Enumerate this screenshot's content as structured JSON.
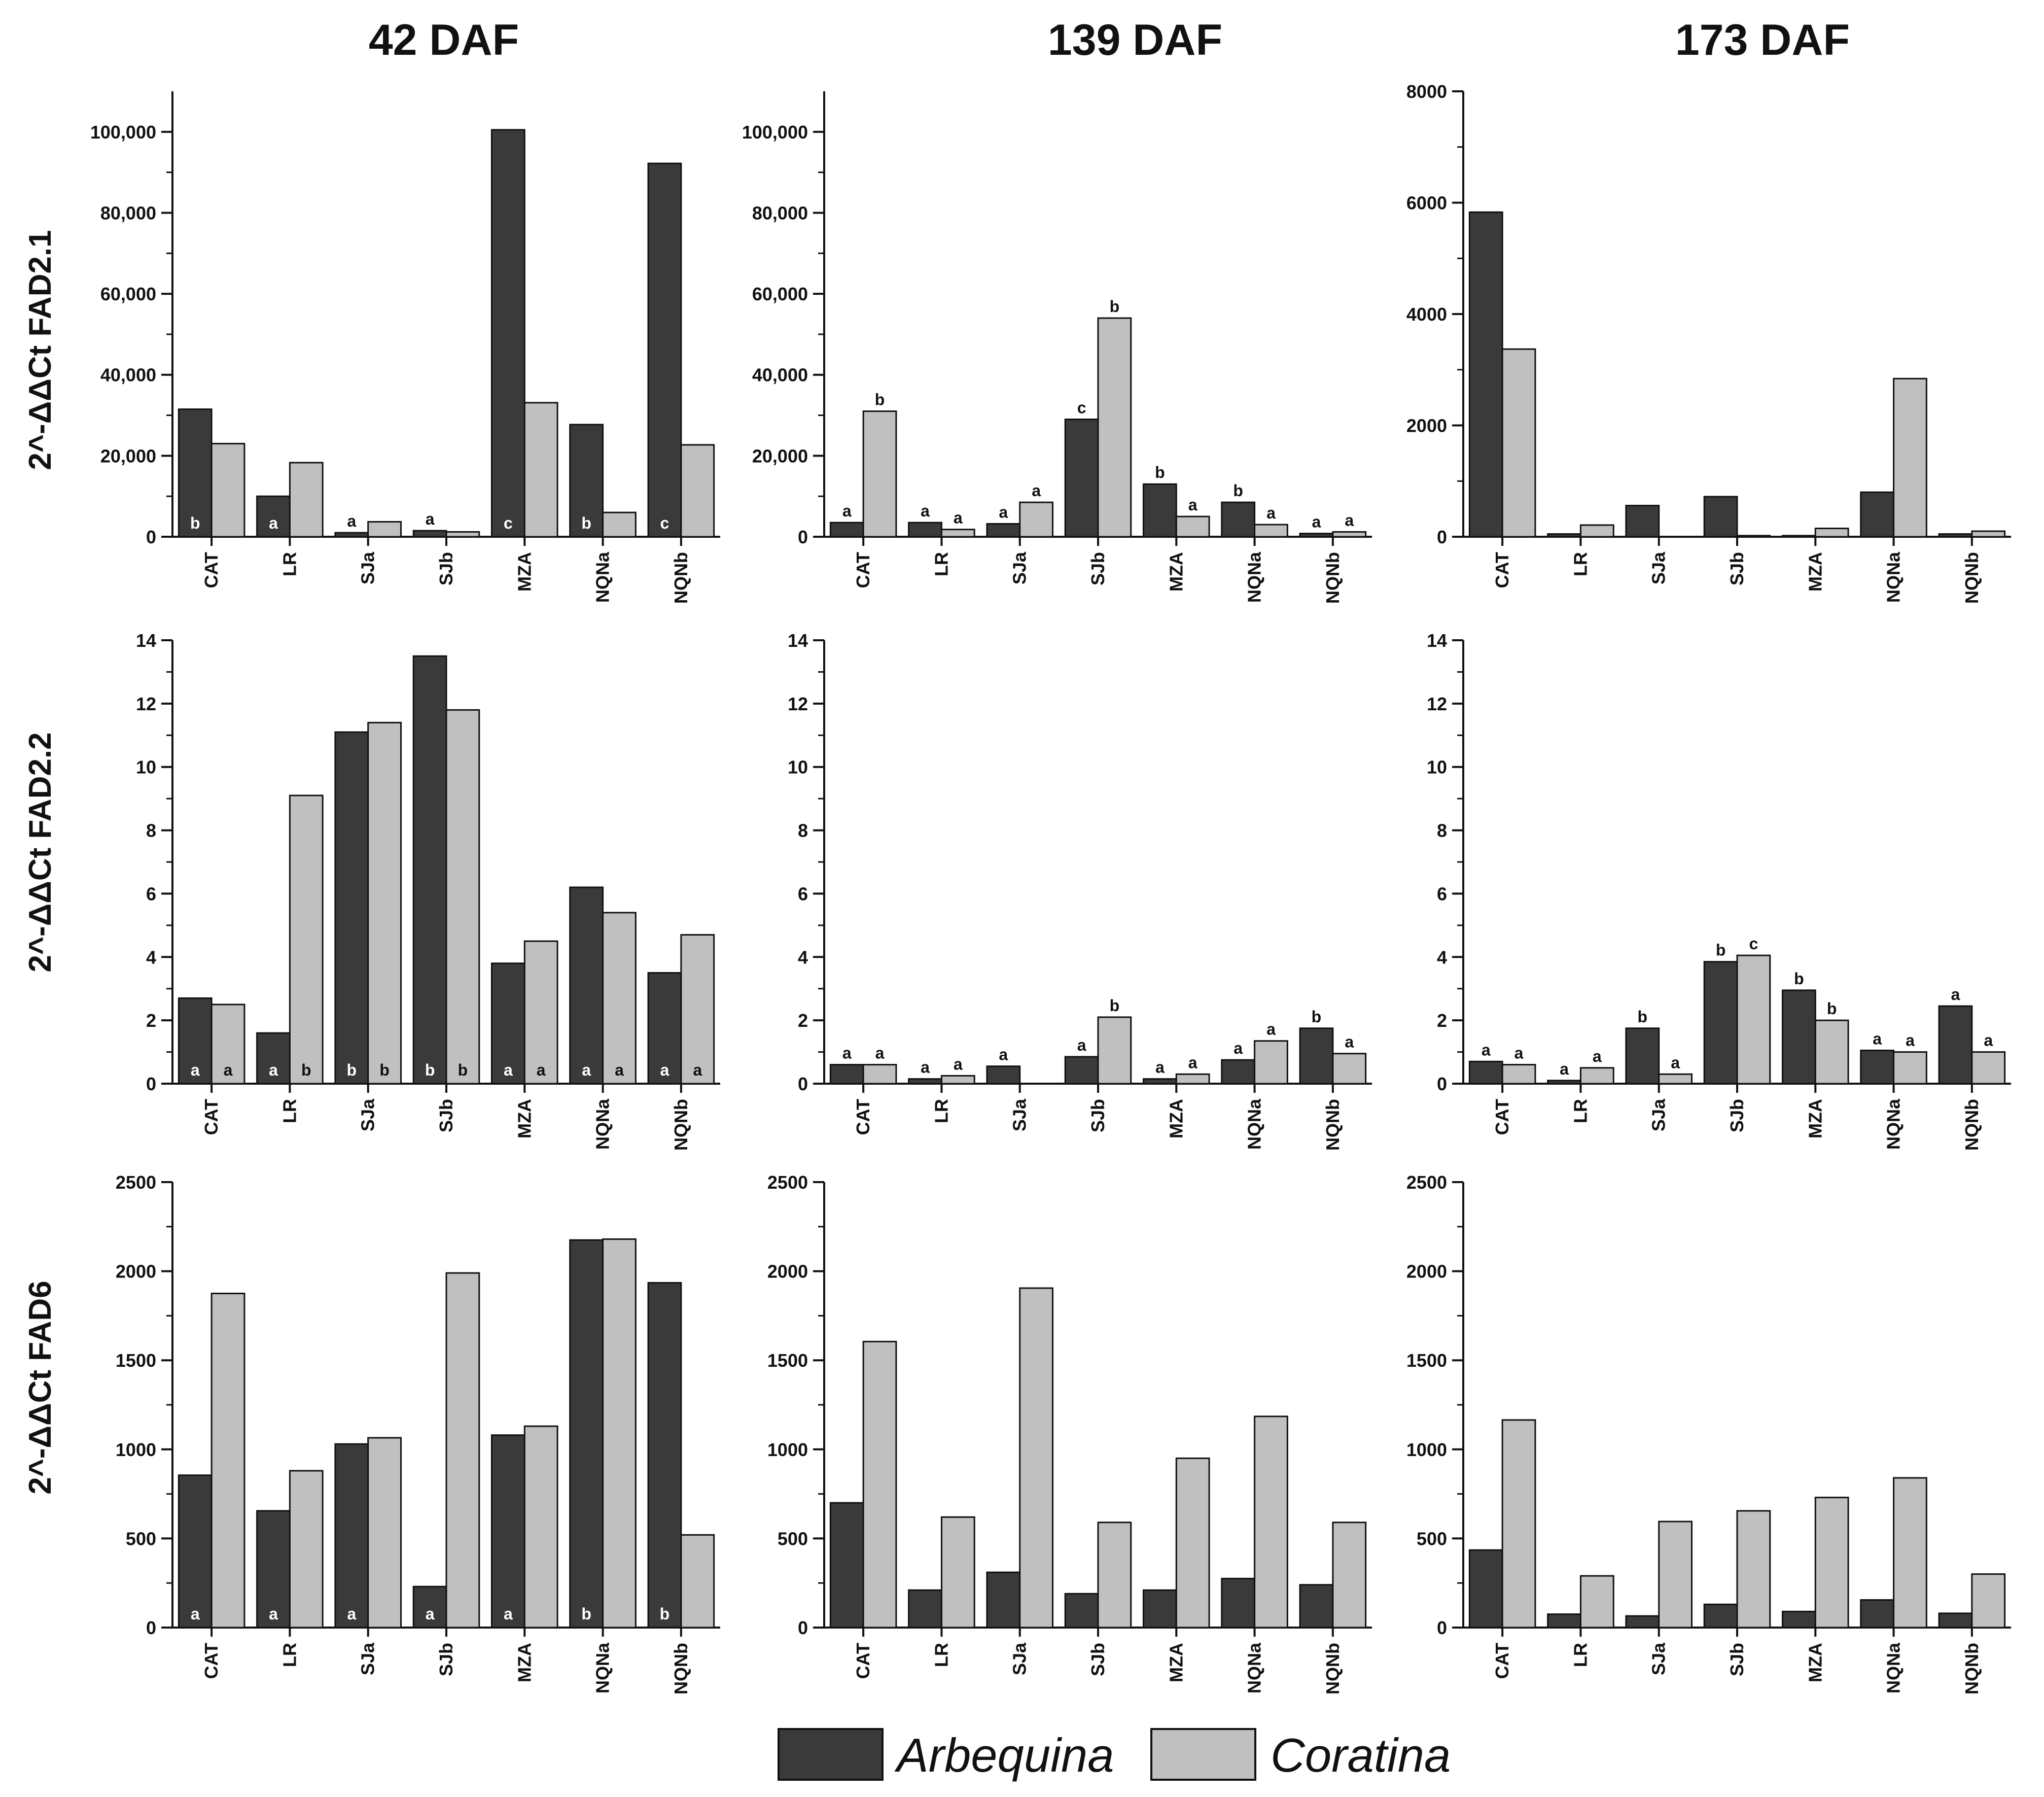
{
  "colors": {
    "arbequina": "#3a3a3a",
    "coratina": "#c0c0c0",
    "axis": "#111111"
  },
  "legend": [
    {
      "key": "arbequina",
      "label": "Arbequina"
    },
    {
      "key": "coratina",
      "label": "Coratina"
    }
  ],
  "column_titles": [
    "42 DAF",
    "139 DAF",
    "173 DAF"
  ],
  "row_labels": [
    "2^-ΔΔCt FAD2.1",
    "2^-ΔΔCt FAD2.2",
    "2^-ΔΔCt FAD6"
  ],
  "chart_data": [
    {
      "type": "bar",
      "gene": "FAD2.1",
      "stage": "42 DAF",
      "categories": [
        "CAT",
        "LR",
        "SJa",
        "SJb",
        "MZA",
        "NQNa",
        "NQNb"
      ],
      "ylim": [
        0,
        110000
      ],
      "major_ticks": [
        0,
        20000,
        40000,
        60000,
        80000,
        100000
      ],
      "tick_labels": [
        "0",
        "20,000",
        "40,000",
        "60,000",
        "80,000",
        "100,000"
      ],
      "series": [
        {
          "name": "Arbequina",
          "values": [
            31500,
            10000,
            1000,
            1500,
            100500,
            27700,
            92200
          ],
          "letters": [
            "b",
            "a",
            "a",
            "a",
            "c",
            "b",
            "c"
          ],
          "letter_pos": "inside"
        },
        {
          "name": "Coratina",
          "values": [
            23000,
            18300,
            3700,
            1200,
            33100,
            6000,
            22700
          ],
          "letters": [
            "",
            "",
            "",
            "",
            "",
            "",
            ""
          ],
          "letter_pos": "above"
        }
      ]
    },
    {
      "type": "bar",
      "gene": "FAD2.1",
      "stage": "139 DAF",
      "categories": [
        "CAT",
        "LR",
        "SJa",
        "SJb",
        "MZA",
        "NQNa",
        "NQNb"
      ],
      "ylim": [
        0,
        110000
      ],
      "major_ticks": [
        0,
        20000,
        40000,
        60000,
        80000,
        100000
      ],
      "tick_labels": [
        "0",
        "20,000",
        "40,000",
        "60,000",
        "80,000",
        "100,000"
      ],
      "series": [
        {
          "name": "Arbequina",
          "values": [
            3500,
            3500,
            3200,
            29000,
            13000,
            8500,
            800
          ],
          "letters": [
            "a",
            "a",
            "a",
            "c",
            "b",
            "b",
            "a"
          ],
          "letter_pos": "above"
        },
        {
          "name": "Coratina",
          "values": [
            31000,
            1800,
            8500,
            54000,
            5000,
            3000,
            1200
          ],
          "letters": [
            "b",
            "a",
            "a",
            "b",
            "a",
            "a",
            "a"
          ],
          "letter_pos": "above"
        }
      ]
    },
    {
      "type": "bar",
      "gene": "FAD2.1",
      "stage": "173 DAF",
      "categories": [
        "CAT",
        "LR",
        "SJa",
        "SJb",
        "MZA",
        "NQNa",
        "NQNb"
      ],
      "ylim": [
        0,
        8000
      ],
      "major_ticks": [
        0,
        2000,
        4000,
        6000,
        8000
      ],
      "tick_labels": [
        "0",
        "2000",
        "4000",
        "6000",
        "8000"
      ],
      "series": [
        {
          "name": "Arbequina",
          "values": [
            5830,
            50,
            560,
            720,
            20,
            800,
            50
          ],
          "letters": [
            "",
            "",
            "",
            "",
            "",
            "",
            ""
          ],
          "letter_pos": "above"
        },
        {
          "name": "Coratina",
          "values": [
            3370,
            210,
            0,
            20,
            150,
            2840,
            100
          ],
          "letters": [
            "",
            "",
            "",
            "",
            "",
            "",
            ""
          ],
          "letter_pos": "above"
        }
      ]
    },
    {
      "type": "bar",
      "gene": "FAD2.2",
      "stage": "42 DAF",
      "categories": [
        "CAT",
        "LR",
        "SJa",
        "SJb",
        "MZA",
        "NQNa",
        "NQNb"
      ],
      "ylim": [
        0,
        14
      ],
      "major_ticks": [
        0,
        2,
        4,
        6,
        8,
        10,
        12,
        14
      ],
      "tick_labels": [
        "0",
        "2",
        "4",
        "6",
        "8",
        "10",
        "12",
        "14"
      ],
      "series": [
        {
          "name": "Arbequina",
          "values": [
            2.7,
            1.6,
            11.1,
            13.5,
            3.8,
            6.2,
            3.5
          ],
          "letters": [
            "a",
            "a",
            "b",
            "b",
            "a",
            "a",
            "a"
          ],
          "letter_pos": "inside"
        },
        {
          "name": "Coratina",
          "values": [
            2.5,
            9.1,
            11.4,
            11.8,
            4.5,
            5.4,
            4.7
          ],
          "letters": [
            "a",
            "b",
            "b",
            "b",
            "a",
            "a",
            "a"
          ],
          "letter_pos": "inside"
        }
      ]
    },
    {
      "type": "bar",
      "gene": "FAD2.2",
      "stage": "139 DAF",
      "categories": [
        "CAT",
        "LR",
        "SJa",
        "SJb",
        "MZA",
        "NQNa",
        "NQNb"
      ],
      "ylim": [
        0,
        14
      ],
      "major_ticks": [
        0,
        2,
        4,
        6,
        8,
        10,
        12,
        14
      ],
      "tick_labels": [
        "0",
        "2",
        "4",
        "6",
        "8",
        "10",
        "12",
        "14"
      ],
      "series": [
        {
          "name": "Arbequina",
          "values": [
            0.6,
            0.15,
            0.55,
            0.85,
            0.15,
            0.75,
            1.75
          ],
          "letters": [
            "a",
            "a",
            "a",
            "a",
            "a",
            "a",
            "b"
          ],
          "letter_pos": "above"
        },
        {
          "name": "Coratina",
          "values": [
            0.6,
            0.25,
            0.0,
            2.1,
            0.3,
            1.35,
            0.95
          ],
          "letters": [
            "a",
            "a",
            "",
            "b",
            "a",
            "a",
            "a"
          ],
          "letter_pos": "above"
        }
      ]
    },
    {
      "type": "bar",
      "gene": "FAD2.2",
      "stage": "173 DAF",
      "categories": [
        "CAT",
        "LR",
        "SJa",
        "SJb",
        "MZA",
        "NQNa",
        "NQNb"
      ],
      "ylim": [
        0,
        14
      ],
      "major_ticks": [
        0,
        2,
        4,
        6,
        8,
        10,
        12,
        14
      ],
      "tick_labels": [
        "0",
        "2",
        "4",
        "6",
        "8",
        "10",
        "12",
        "14"
      ],
      "series": [
        {
          "name": "Arbequina",
          "values": [
            0.7,
            0.1,
            1.75,
            3.85,
            2.95,
            1.05,
            2.45
          ],
          "letters": [
            "a",
            "a",
            "b",
            "b",
            "b",
            "a",
            "a"
          ],
          "letter_pos": "above"
        },
        {
          "name": "Coratina",
          "values": [
            0.6,
            0.5,
            0.3,
            4.05,
            2.0,
            1.0,
            1.0
          ],
          "letters": [
            "a",
            "a",
            "a",
            "c",
            "b",
            "a",
            "a"
          ],
          "letter_pos": "above"
        }
      ]
    },
    {
      "type": "bar",
      "gene": "FAD6",
      "stage": "42 DAF",
      "categories": [
        "CAT",
        "LR",
        "SJa",
        "SJb",
        "MZA",
        "NQNa",
        "NQNb"
      ],
      "ylim": [
        0,
        2500
      ],
      "major_ticks": [
        0,
        500,
        1000,
        1500,
        2000,
        2500
      ],
      "tick_labels": [
        "0",
        "500",
        "1000",
        "1500",
        "2000",
        "2500"
      ],
      "series": [
        {
          "name": "Arbequina",
          "values": [
            855,
            655,
            1030,
            230,
            1080,
            2175,
            1935
          ],
          "letters": [
            "a",
            "a",
            "a",
            "a",
            "a",
            "b",
            "b"
          ],
          "letter_pos": "inside"
        },
        {
          "name": "Coratina",
          "values": [
            1875,
            880,
            1065,
            1990,
            1130,
            2180,
            520
          ],
          "letters": [
            "",
            "",
            "",
            "",
            "",
            "",
            ""
          ],
          "letter_pos": "above"
        }
      ]
    },
    {
      "type": "bar",
      "gene": "FAD6",
      "stage": "139 DAF",
      "categories": [
        "CAT",
        "LR",
        "SJa",
        "SJb",
        "MZA",
        "NQNa",
        "NQNb"
      ],
      "ylim": [
        0,
        2500
      ],
      "major_ticks": [
        0,
        500,
        1000,
        1500,
        2000,
        2500
      ],
      "tick_labels": [
        "0",
        "500",
        "1000",
        "1500",
        "2000",
        "2500"
      ],
      "series": [
        {
          "name": "Arbequina",
          "values": [
            700,
            210,
            310,
            190,
            210,
            275,
            240
          ],
          "letters": [
            "",
            "",
            "",
            "",
            "",
            "",
            ""
          ],
          "letter_pos": "above"
        },
        {
          "name": "Coratina",
          "values": [
            1605,
            620,
            1905,
            590,
            950,
            1185,
            590
          ],
          "letters": [
            "",
            "",
            "",
            "",
            "",
            "",
            ""
          ],
          "letter_pos": "above"
        }
      ]
    },
    {
      "type": "bar",
      "gene": "FAD6",
      "stage": "173 DAF",
      "categories": [
        "CAT",
        "LR",
        "SJa",
        "SJb",
        "MZA",
        "NQNa",
        "NQNb"
      ],
      "ylim": [
        0,
        2500
      ],
      "major_ticks": [
        0,
        500,
        1000,
        1500,
        2000,
        2500
      ],
      "tick_labels": [
        "0",
        "500",
        "1000",
        "1500",
        "2000",
        "2500"
      ],
      "series": [
        {
          "name": "Arbequina",
          "values": [
            435,
            75,
            65,
            130,
            90,
            155,
            80
          ],
          "letters": [
            "",
            "",
            "",
            "",
            "",
            "",
            ""
          ],
          "letter_pos": "above"
        },
        {
          "name": "Coratina",
          "values": [
            1165,
            290,
            595,
            655,
            730,
            840,
            300
          ],
          "letters": [
            "",
            "",
            "",
            "",
            "",
            "",
            ""
          ],
          "letter_pos": "above"
        }
      ]
    }
  ]
}
